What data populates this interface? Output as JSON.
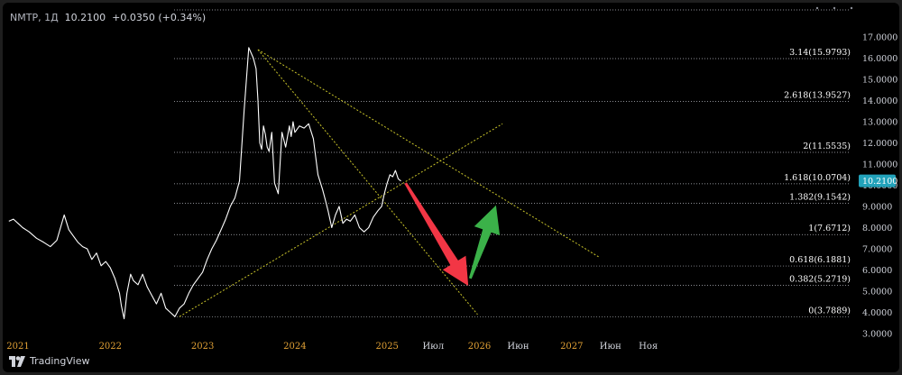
{
  "legend": {
    "symbol": "NMTP, 1Д",
    "price": "10.2100",
    "change": "+0.0350 (+0.34%)"
  },
  "brand": {
    "name": "TradingView",
    "icon": "tradingview-logo-icon"
  },
  "colors": {
    "background": "#000000",
    "price_line": "#ffffff",
    "level_line": "#b9bcc4",
    "trend_line": "#c9c42a",
    "axis_text": "#d1d4dc",
    "year_text": "#e0a035",
    "month_text": "#d1d4dc",
    "price_badge": "#22a2ba",
    "down_arrow": "#f23645",
    "up_arrow": "#3bb149"
  },
  "chart_data": {
    "type": "line",
    "title": "",
    "symbol": "NMTP",
    "timeframe": "1Д",
    "last_price": "10.2100",
    "ylim": [
      3.0,
      17.6
    ],
    "y_ticks": [
      "3.0000",
      "4.0000",
      "5.0000",
      "6.0000",
      "7.0000",
      "8.0000",
      "9.0000",
      "10.0000",
      "11.0000",
      "12.0000",
      "13.0000",
      "14.0000",
      "15.0000",
      "16.0000",
      "17.0000"
    ],
    "x_ticks": [
      {
        "label": "2021",
        "t": 2021.0,
        "kind": "year"
      },
      {
        "label": "2022",
        "t": 2022.0,
        "kind": "year"
      },
      {
        "label": "2023",
        "t": 2023.0,
        "kind": "year"
      },
      {
        "label": "2024",
        "t": 2024.0,
        "kind": "year"
      },
      {
        "label": "2025",
        "t": 2025.0,
        "kind": "year"
      },
      {
        "label": "Июл",
        "t": 2025.5,
        "kind": "month"
      },
      {
        "label": "2026",
        "t": 2026.0,
        "kind": "year"
      },
      {
        "label": "Июн",
        "t": 2026.42,
        "kind": "month"
      },
      {
        "label": "2027",
        "t": 2027.0,
        "kind": "year"
      },
      {
        "label": "Июн",
        "t": 2027.42,
        "kind": "month"
      },
      {
        "label": "Ноя",
        "t": 2027.83,
        "kind": "month"
      }
    ],
    "series": [
      {
        "t": [
          2020.9,
          2020.95,
          2021.0,
          2021.05,
          2021.12,
          2021.2,
          2021.28,
          2021.35,
          2021.42,
          2021.5,
          2021.55,
          2021.6,
          2021.65,
          2021.7,
          2021.75,
          2021.8,
          2021.85,
          2021.9,
          2021.95,
          2022.0,
          2022.05,
          2022.1,
          2022.12,
          2022.15,
          2022.18,
          2022.22,
          2022.25,
          2022.3,
          2022.35,
          2022.4,
          2022.45,
          2022.5,
          2022.55,
          2022.6,
          2022.65,
          2022.7,
          2022.75,
          2022.8,
          2022.85,
          2022.9,
          2022.95,
          2023.0,
          2023.05,
          2023.1,
          2023.15,
          2023.2,
          2023.25,
          2023.3,
          2023.35,
          2023.4,
          2023.45,
          2023.5,
          2023.55,
          2023.58,
          2023.6,
          2023.62,
          2023.64,
          2023.66,
          2023.68,
          2023.7,
          2023.72,
          2023.75,
          2023.78,
          2023.82,
          2023.86,
          2023.9,
          2023.94,
          2023.96,
          2023.98,
          2024.0,
          2024.05,
          2024.1,
          2024.15,
          2024.2,
          2024.25,
          2024.3,
          2024.33,
          2024.36,
          2024.4,
          2024.44,
          2024.48,
          2024.52,
          2024.56,
          2024.6,
          2024.65,
          2024.7,
          2024.75,
          2024.8,
          2024.85,
          2024.9,
          2024.94,
          2024.97,
          2025.0,
          2025.03,
          2025.06,
          2025.09,
          2025.12,
          2025.15
        ],
        "values": [
          8.3,
          8.4,
          8.2,
          8.0,
          7.8,
          7.5,
          7.3,
          7.1,
          7.4,
          8.6,
          7.9,
          7.6,
          7.3,
          7.1,
          7.0,
          6.5,
          6.8,
          6.2,
          6.4,
          6.1,
          5.6,
          4.9,
          4.3,
          3.7,
          4.9,
          5.8,
          5.5,
          5.3,
          5.8,
          5.2,
          4.8,
          4.4,
          4.9,
          4.2,
          4.0,
          3.8,
          4.2,
          4.4,
          4.9,
          5.3,
          5.6,
          5.9,
          6.5,
          7.0,
          7.4,
          7.9,
          8.4,
          9.0,
          9.4,
          10.2,
          13.5,
          16.5,
          16.0,
          15.5,
          14.0,
          12.0,
          11.7,
          12.8,
          12.4,
          11.8,
          11.6,
          12.5,
          10.1,
          9.6,
          12.5,
          11.8,
          12.8,
          12.3,
          13.0,
          12.5,
          12.8,
          12.7,
          12.9,
          12.2,
          10.5,
          9.8,
          9.3,
          8.8,
          8.0,
          8.6,
          9.0,
          8.2,
          8.4,
          8.3,
          8.6,
          8.0,
          7.8,
          8.0,
          8.5,
          8.8,
          9.0,
          9.6,
          10.1,
          10.5,
          10.4,
          10.7,
          10.3,
          10.2
        ]
      }
    ],
    "fib_levels": [
      {
        "label": "3.14(15.9793)",
        "value": 15.9793
      },
      {
        "label": "2.618(13.9527)",
        "value": 13.9527
      },
      {
        "label": "2(11.5535)",
        "value": 11.5535
      },
      {
        "label": "1.618(10.0704)",
        "value": 10.0704
      },
      {
        "label": "1.382(9.1542)",
        "value": 9.1542
      },
      {
        "label": "1(7.6712)",
        "value": 7.6712
      },
      {
        "label": "0.618(6.1881)",
        "value": 6.1881
      },
      {
        "label": "0.382(5.2719)",
        "value": 5.2719
      },
      {
        "label": "0(3.7889)",
        "value": 3.7889
      }
    ],
    "trend_lines": [
      {
        "t1": 2023.6,
        "v1": 16.4,
        "t2": 2027.3,
        "v2": 6.6
      },
      {
        "t1": 2023.6,
        "v1": 16.4,
        "t2": 2025.98,
        "v2": 3.9
      },
      {
        "t1": 2022.75,
        "v1": 3.8,
        "t2": 2026.25,
        "v2": 12.9
      }
    ],
    "arrows": [
      {
        "direction": "down",
        "from_t": 2025.2,
        "from_v": 10.1,
        "to_t": 2025.88,
        "to_v": 5.25
      },
      {
        "direction": "up",
        "from_t": 2025.9,
        "from_v": 5.6,
        "to_t": 2026.18,
        "to_v": 9.05
      }
    ]
  }
}
